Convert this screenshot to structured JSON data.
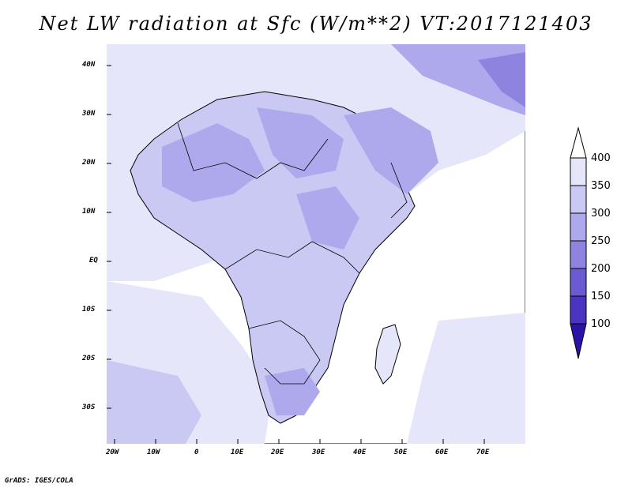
{
  "title": "Net LW radiation at Sfc (W/m**2) VT:2017121403",
  "footer": "GrADS: IGES/COLA",
  "map": {
    "lon_range": [
      -22,
      80
    ],
    "lat_range": [
      -37,
      45
    ],
    "lon_ticks": [
      "20W",
      "10W",
      "0",
      "10E",
      "20E",
      "30E",
      "40E",
      "50E",
      "60E",
      "70E"
    ],
    "lat_ticks": [
      "40N",
      "30N",
      "20N",
      "10N",
      "EQ",
      "10S",
      "20S",
      "30S"
    ],
    "background_fill": "#ffffff"
  },
  "colorbar": {
    "levels": [
      "400",
      "350",
      "300",
      "250",
      "200",
      "150",
      "100"
    ],
    "colors": [
      "#e6e6fb",
      "#c9c9f3",
      "#aea8ec",
      "#8e84e0",
      "#6a5bd2",
      "#4b34bf",
      "#2d12a7"
    ]
  }
}
